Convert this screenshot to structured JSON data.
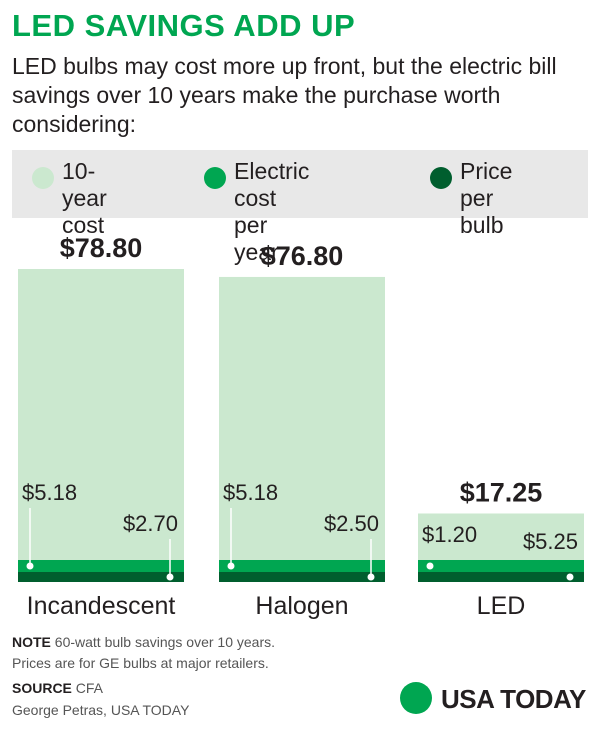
{
  "header": {
    "title": "LED SAVINGS ADD UP",
    "subtitle": "LED bulbs may cost more up front, but the electric bill savings over 10 years make the purchase worth considering:"
  },
  "legend": [
    {
      "label": "10-year\ncost",
      "color": "#cbe8cf"
    },
    {
      "label": "Electric cost\nper year",
      "color": "#00a651"
    },
    {
      "label": "Price\nper bulb",
      "color": "#005e2e"
    }
  ],
  "chart_data": {
    "type": "bar",
    "categories": [
      "Incandescent",
      "Halogen",
      "LED"
    ],
    "series": [
      {
        "name": "10-year cost",
        "values": [
          78.8,
          76.8,
          17.25
        ],
        "labels": [
          "$78.80",
          "$76.80",
          "$17.25"
        ],
        "color": "#cbe8cf"
      },
      {
        "name": "Electric cost per year",
        "values": [
          5.18,
          5.18,
          1.2
        ],
        "labels": [
          "$5.18",
          "$5.18",
          "$1.20"
        ],
        "color": "#00a651"
      },
      {
        "name": "Price per bulb",
        "values": [
          2.7,
          2.5,
          5.25
        ],
        "labels": [
          "$2.70",
          "$2.50",
          "$5.25"
        ],
        "color": "#005e2e"
      }
    ],
    "ylim": [
      0,
      78.8
    ]
  },
  "footer": {
    "note_label": "NOTE",
    "note_text": "60-watt bulb savings over 10 years.",
    "note_text2": "Prices are for GE bulbs at major retailers.",
    "source_label": "SOURCE",
    "source_text": "CFA",
    "credit": "George Petras, USA TODAY",
    "brand": "USA TODAY"
  }
}
